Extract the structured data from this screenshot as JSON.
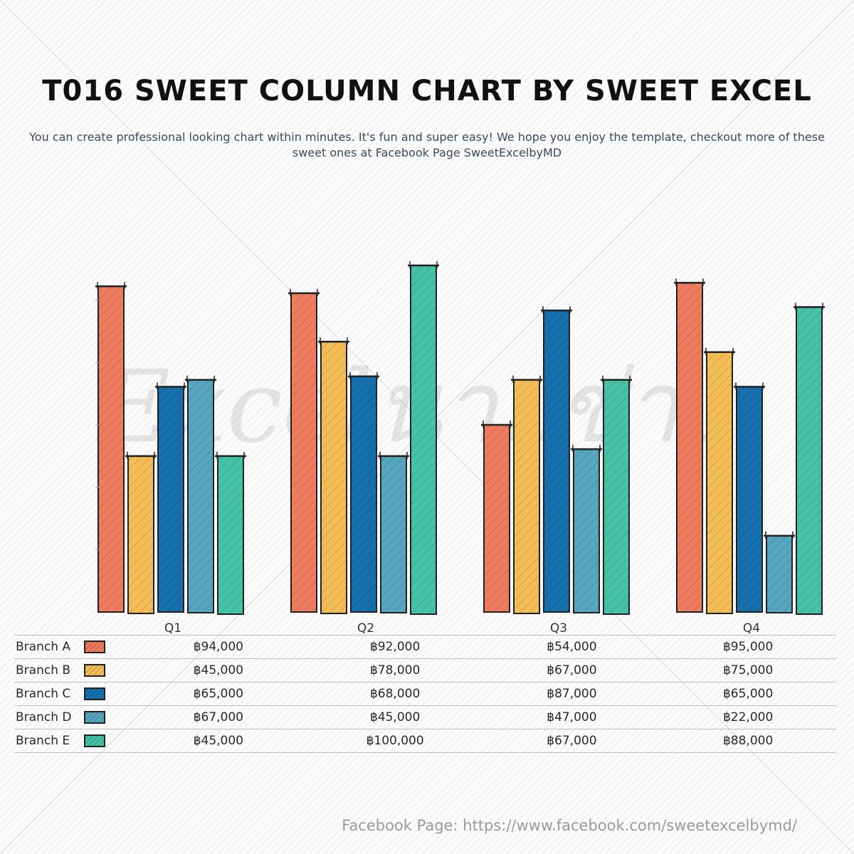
{
  "header": {
    "title": "T016 SWEET COLUMN CHART BY SWEET EXCEL",
    "subtitle": "You can create professional looking chart within minutes. It's fun and super easy! We hope you enjoy the template, checkout more of these sweet ones at Facebook Page SweetExcelbyMD"
  },
  "footer": {
    "text": "Facebook Page: https://www.facebook.com/sweetexcelbymd/"
  },
  "watermark": "Excelนายช่าง",
  "chart_data": {
    "type": "bar",
    "categories": [
      "Q1",
      "Q2",
      "Q3",
      "Q4"
    ],
    "series": [
      {
        "name": "Branch A",
        "color": "#ef7c5f",
        "values": [
          94000,
          92000,
          54000,
          95000
        ],
        "labels": [
          "฿94,000",
          "฿92,000",
          "฿54,000",
          "฿95,000"
        ]
      },
      {
        "name": "Branch B",
        "color": "#f5bd56",
        "values": [
          45000,
          78000,
          67000,
          75000
        ],
        "labels": [
          "฿45,000",
          "฿78,000",
          "฿67,000",
          "฿75,000"
        ]
      },
      {
        "name": "Branch C",
        "color": "#1670ad",
        "values": [
          65000,
          68000,
          87000,
          65000
        ],
        "labels": [
          "฿65,000",
          "฿68,000",
          "฿87,000",
          "฿65,000"
        ]
      },
      {
        "name": "Branch D",
        "color": "#56a6c0",
        "values": [
          67000,
          45000,
          47000,
          22000
        ],
        "labels": [
          "฿67,000",
          "฿45,000",
          "฿47,000",
          "฿22,000"
        ]
      },
      {
        "name": "Branch E",
        "color": "#46c3a6",
        "values": [
          45000,
          100000,
          67000,
          88000
        ],
        "labels": [
          "฿45,000",
          "฿100,000",
          "฿67,000",
          "฿88,000"
        ]
      }
    ],
    "ylim": [
      0,
      100000
    ],
    "grid": false,
    "legend": "data-table-below"
  }
}
